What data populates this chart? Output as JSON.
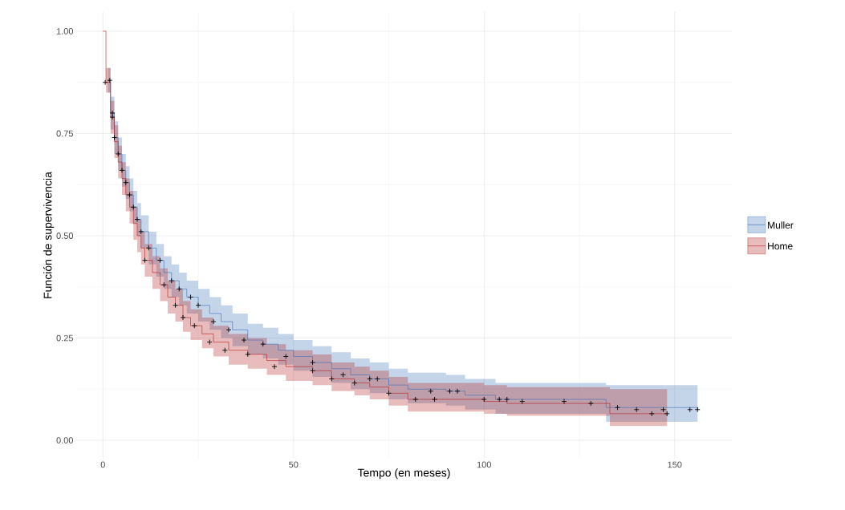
{
  "chart_data": {
    "type": "step",
    "xlabel": "Tempo (en meses)",
    "ylabel": "Función de supervivencia",
    "xlim": [
      -7,
      165
    ],
    "ylim": [
      -0.045,
      1.047
    ],
    "xticks": [
      0,
      50,
      100,
      150
    ],
    "yticks": [
      {
        "value": 0,
        "label": "0.00"
      },
      {
        "value": 0.25,
        "label": "0.25"
      },
      {
        "value": 0.5,
        "label": "0.50"
      },
      {
        "value": 0.75,
        "label": "0.75"
      },
      {
        "value": 1,
        "label": "1.00"
      }
    ],
    "grid": true,
    "legend": "right",
    "series": [
      {
        "name": "Muller",
        "color": "#3d6fb5",
        "x": [
          0,
          1.3,
          2,
          3,
          4,
          5,
          6,
          7,
          8,
          9,
          10,
          12,
          14,
          16,
          18,
          20,
          22,
          25,
          28,
          31,
          34,
          38,
          42,
          46,
          50,
          55,
          60,
          65,
          70,
          75,
          80,
          90,
          95,
          103,
          132,
          156
        ],
        "values": [
          null,
          0.88,
          0.8,
          0.74,
          0.7,
          0.66,
          0.63,
          0.6,
          0.57,
          0.54,
          0.51,
          0.47,
          0.44,
          0.41,
          0.39,
          0.37,
          0.35,
          0.33,
          0.31,
          0.29,
          0.27,
          0.245,
          0.235,
          0.22,
          0.205,
          0.19,
          0.175,
          0.16,
          0.15,
          0.135,
          0.125,
          0.12,
          0.11,
          0.1,
          0.08,
          0.075
        ],
        "lower": [
          1.0,
          0.85,
          0.76,
          0.7,
          0.66,
          0.62,
          0.59,
          0.56,
          0.53,
          0.5,
          0.47,
          0.43,
          0.4,
          0.37,
          0.35,
          0.33,
          0.31,
          0.29,
          0.27,
          0.25,
          0.23,
          0.21,
          0.2,
          0.185,
          0.17,
          0.155,
          0.14,
          0.125,
          0.115,
          0.1,
          0.09,
          0.085,
          0.075,
          0.065,
          0.045,
          0.045
        ],
        "upper": [
          1.0,
          0.91,
          0.84,
          0.78,
          0.74,
          0.7,
          0.67,
          0.64,
          0.61,
          0.58,
          0.55,
          0.51,
          0.48,
          0.45,
          0.43,
          0.41,
          0.39,
          0.37,
          0.35,
          0.33,
          0.31,
          0.285,
          0.275,
          0.26,
          0.245,
          0.23,
          0.215,
          0.2,
          0.19,
          0.175,
          0.165,
          0.16,
          0.15,
          0.14,
          0.135,
          0.135
        ]
      },
      {
        "name": "Home",
        "color": "#b22222",
        "x": [
          0,
          0.8,
          2,
          3,
          4,
          5,
          6,
          7,
          8,
          9,
          10,
          11,
          13,
          15,
          17,
          19,
          21,
          23,
          26,
          29,
          33,
          38,
          43,
          48,
          55,
          60,
          66,
          70,
          75,
          80,
          100,
          106,
          133,
          148
        ],
        "values": [
          1.0,
          0.875,
          0.79,
          0.73,
          0.68,
          0.64,
          0.6,
          0.57,
          0.53,
          0.5,
          0.47,
          0.44,
          0.41,
          0.38,
          0.35,
          0.33,
          0.3,
          0.28,
          0.26,
          0.24,
          0.22,
          0.21,
          0.195,
          0.18,
          0.17,
          0.15,
          0.14,
          0.13,
          0.115,
          0.1,
          0.095,
          0.09,
          0.065,
          0.065
        ],
        "lower": [
          1.0,
          0.85,
          0.75,
          0.69,
          0.64,
          0.6,
          0.56,
          0.53,
          0.49,
          0.46,
          0.43,
          0.4,
          0.37,
          0.34,
          0.31,
          0.29,
          0.265,
          0.245,
          0.225,
          0.205,
          0.185,
          0.175,
          0.16,
          0.145,
          0.135,
          0.12,
          0.11,
          0.1,
          0.085,
          0.07,
          0.065,
          0.06,
          0.035,
          0.035
        ],
        "upper": [
          1.0,
          0.91,
          0.83,
          0.77,
          0.72,
          0.68,
          0.64,
          0.61,
          0.57,
          0.54,
          0.51,
          0.48,
          0.45,
          0.42,
          0.39,
          0.37,
          0.34,
          0.32,
          0.3,
          0.28,
          0.26,
          0.25,
          0.235,
          0.22,
          0.21,
          0.19,
          0.18,
          0.17,
          0.155,
          0.14,
          0.135,
          0.13,
          0.125,
          0.125
        ]
      },
      {
        "type": "scatter",
        "marker": "cross",
        "color": "#000000",
        "x": [
          1.8,
          0.6,
          2.5,
          2.5,
          3,
          4,
          5,
          6,
          7,
          8,
          9,
          10,
          11,
          12,
          15,
          18,
          20,
          23,
          25,
          29,
          33,
          37,
          42,
          48,
          55,
          63,
          70,
          72,
          16,
          19,
          21,
          24,
          28,
          32,
          38,
          45,
          55,
          60,
          66,
          75,
          86,
          91,
          93,
          82,
          87,
          100,
          104,
          106,
          110,
          121,
          128,
          135,
          140,
          144,
          147,
          148,
          154,
          156
        ],
        "values": [
          0.88,
          0.875,
          0.8,
          0.79,
          0.74,
          0.7,
          0.66,
          0.63,
          0.6,
          0.57,
          0.54,
          0.51,
          0.44,
          0.47,
          0.44,
          0.39,
          0.37,
          0.35,
          0.33,
          0.29,
          0.27,
          0.245,
          0.235,
          0.205,
          0.19,
          0.16,
          0.15,
          0.15,
          0.38,
          0.33,
          0.3,
          0.28,
          0.24,
          0.22,
          0.21,
          0.18,
          0.17,
          0.15,
          0.14,
          0.115,
          0.12,
          0.12,
          0.12,
          0.1,
          0.1,
          0.1,
          0.1,
          0.1,
          0.095,
          0.095,
          0.09,
          0.08,
          0.075,
          0.065,
          0.075,
          0.065,
          0.075,
          0.075
        ]
      }
    ]
  }
}
